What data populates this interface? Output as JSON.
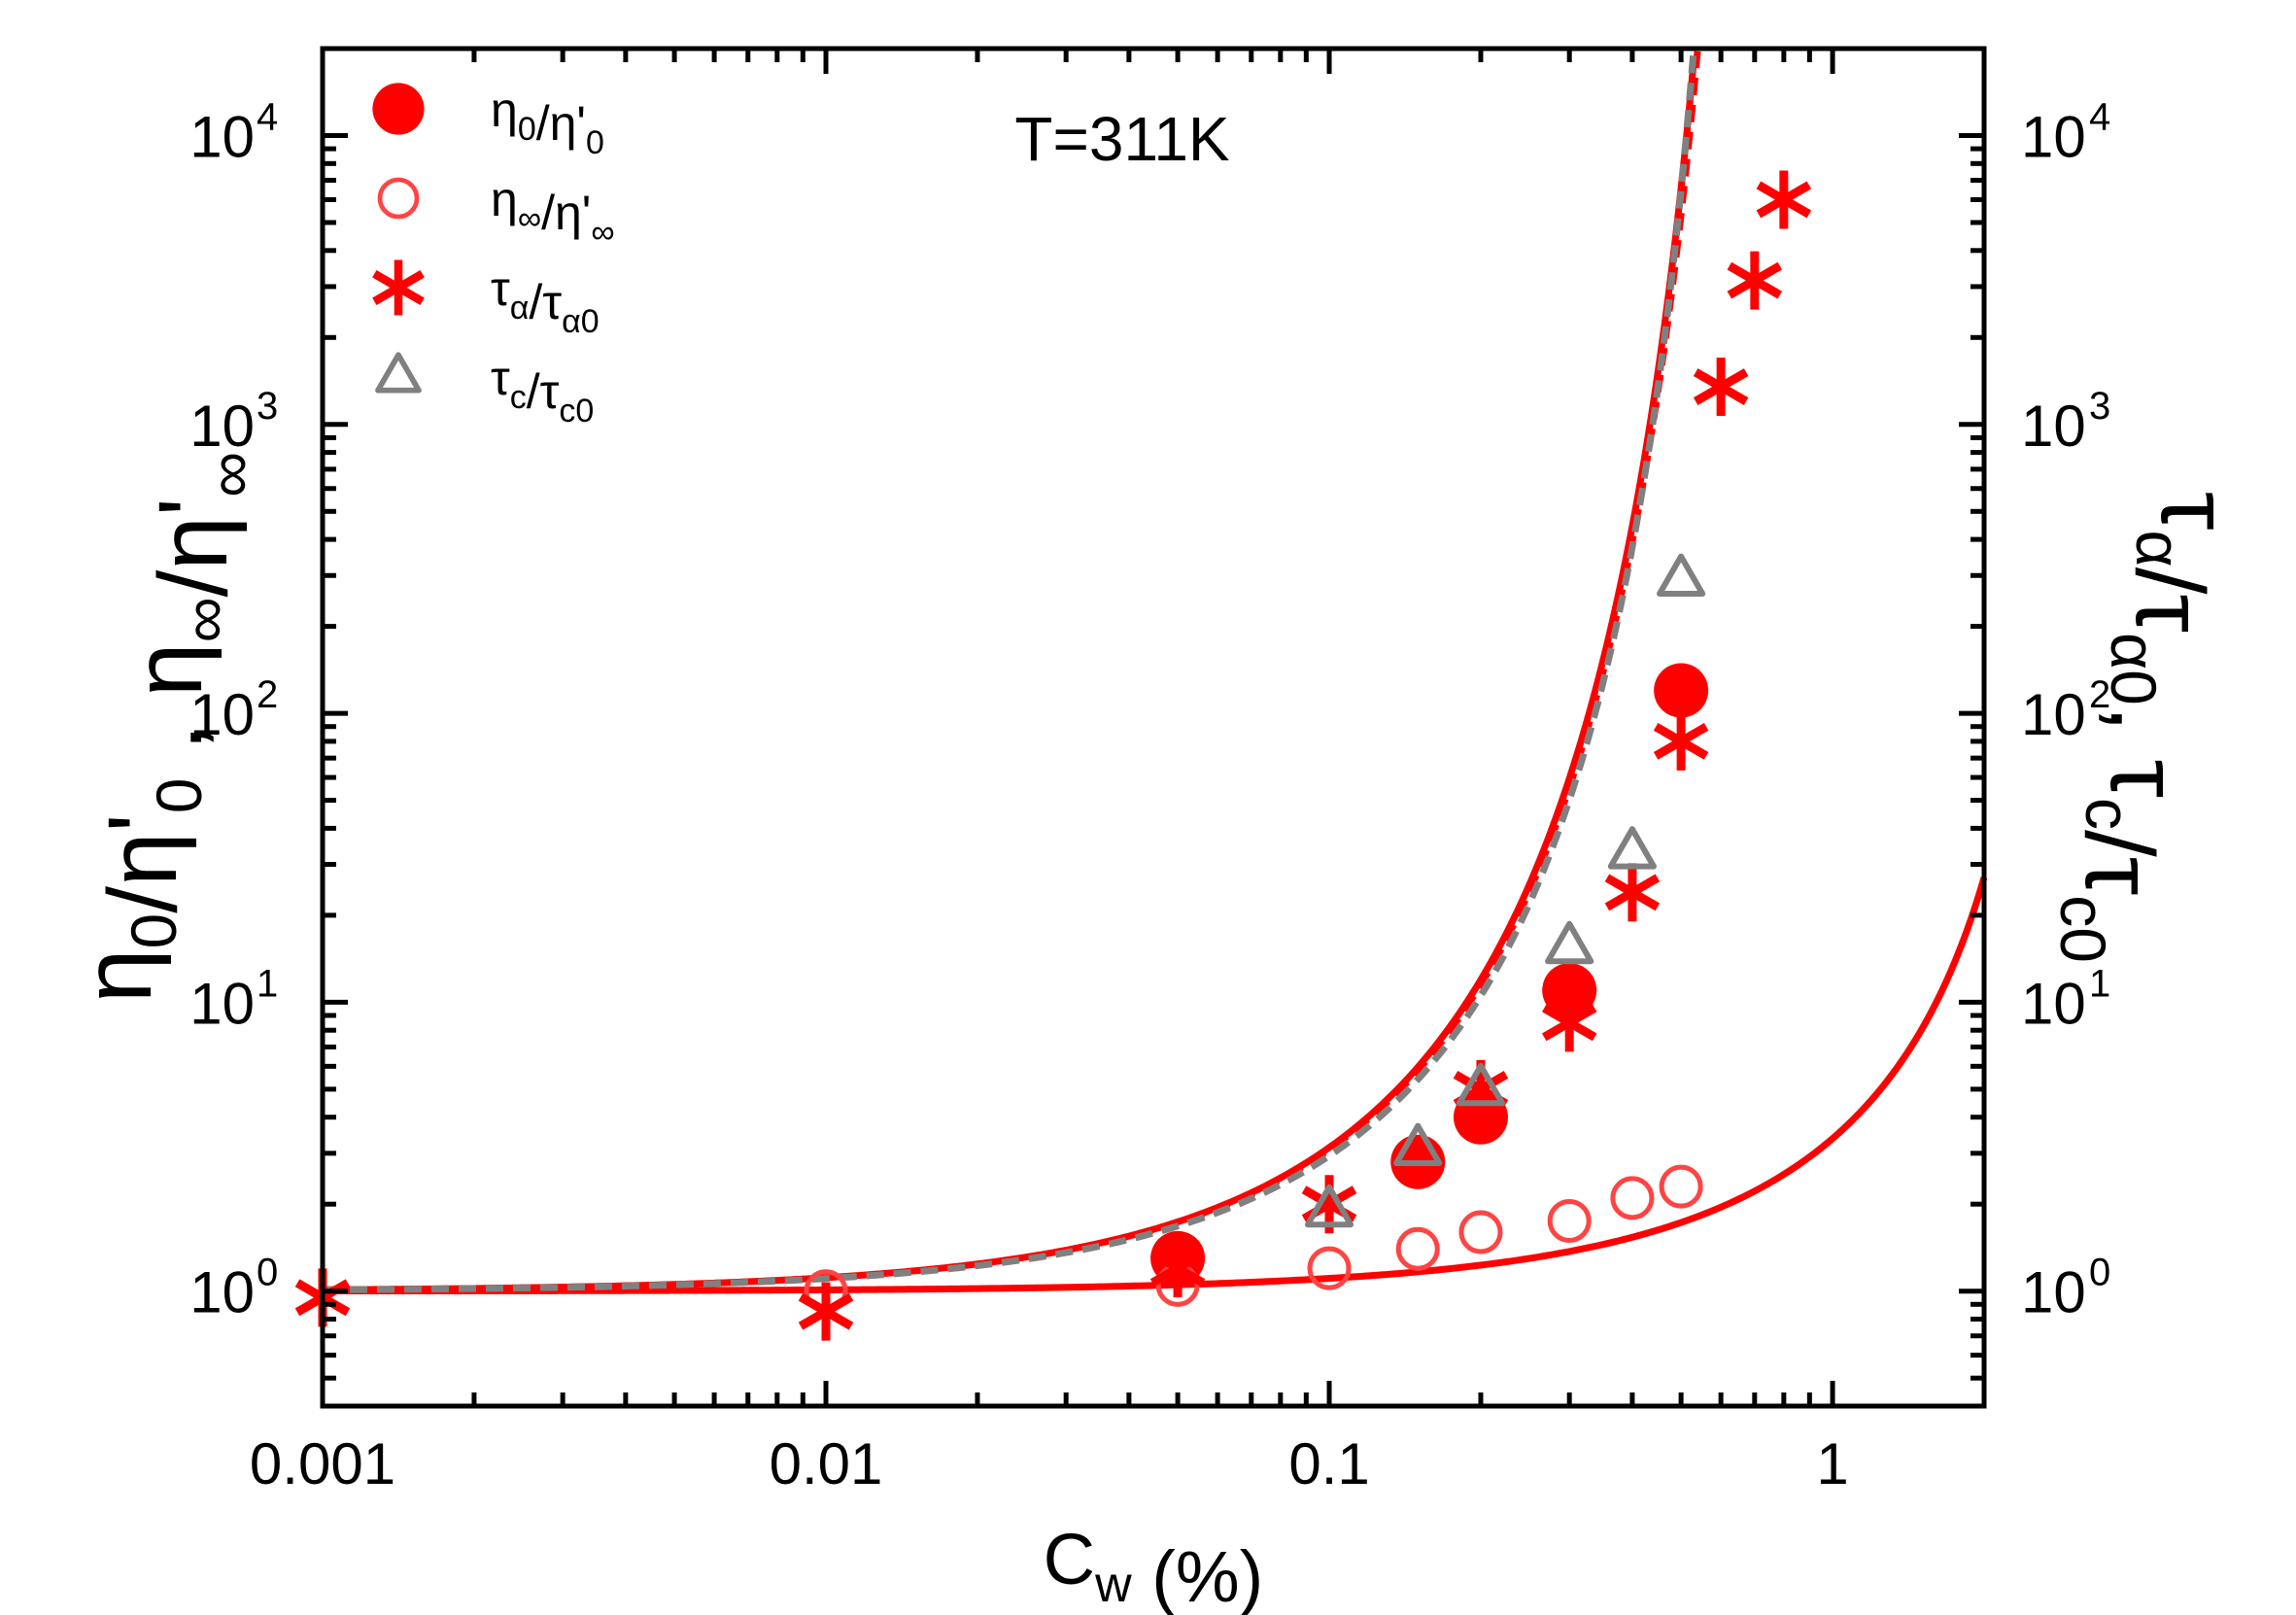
{
  "chart_data": {
    "type": "scatter",
    "title": "",
    "annotation": "T=311K",
    "x_scale": "log",
    "y_scale": "log",
    "xlim": [
      0.001,
      2
    ],
    "ylim": [
      0.4,
      20000
    ],
    "xlabel": {
      "main": "C",
      "sub": "w",
      "rest": " (%)"
    },
    "ylabel_left": {
      "parts": [
        {
          "t": "η",
          "s": "n"
        },
        {
          "t": "0",
          "s": "sub"
        },
        {
          "t": "/η'",
          "s": "n"
        },
        {
          "t": "0",
          "s": "sub"
        },
        {
          "t": " , ",
          "s": "n"
        },
        {
          "t": "η",
          "s": "n"
        },
        {
          "t": "∞",
          "s": "sub"
        },
        {
          "t": "/η'",
          "s": "n"
        },
        {
          "t": "∞",
          "s": "sub"
        }
      ]
    },
    "ylabel_right": {
      "parts": [
        {
          "t": "τ",
          "s": "n"
        },
        {
          "t": "α",
          "s": "sub"
        },
        {
          "t": "/τ",
          "s": "n"
        },
        {
          "t": "α0",
          "s": "sub"
        },
        {
          "t": ", ",
          "s": "n"
        },
        {
          "t": "τ",
          "s": "n"
        },
        {
          "t": "c",
          "s": "sub"
        },
        {
          "t": "/τ",
          "s": "n"
        },
        {
          "t": "c0",
          "s": "sub"
        }
      ]
    },
    "x_ticks": [
      {
        "value": 0.001,
        "label": "0.001"
      },
      {
        "value": 0.01,
        "label": "0.01"
      },
      {
        "value": 0.1,
        "label": "0.1"
      },
      {
        "value": 1,
        "label": "1"
      }
    ],
    "y_ticks": [
      {
        "value": 1,
        "base": "10",
        "exp": "0"
      },
      {
        "value": 10,
        "base": "10",
        "exp": "1"
      },
      {
        "value": 100,
        "base": "10",
        "exp": "2"
      },
      {
        "value": 1000,
        "base": "10",
        "exp": "3"
      },
      {
        "value": 10000,
        "base": "10",
        "exp": "4"
      }
    ],
    "series": [
      {
        "name": "η0/η'0",
        "legend_parts": [
          {
            "t": "η",
            "s": "n"
          },
          {
            "t": "0",
            "s": "sub"
          },
          {
            "t": "/η'",
            "s": "n"
          },
          {
            "t": "0",
            "s": "sub"
          }
        ],
        "marker": "filled-circle",
        "color": "#ff0000",
        "points": [
          [
            0.05,
            1.3
          ],
          [
            0.15,
            2.8
          ],
          [
            0.2,
            4.0
          ],
          [
            0.3,
            11
          ],
          [
            0.5,
            120
          ]
        ]
      },
      {
        "name": "η∞/η'∞",
        "legend_parts": [
          {
            "t": "η",
            "s": "n"
          },
          {
            "t": "∞",
            "s": "sub"
          },
          {
            "t": "/η'",
            "s": "n"
          },
          {
            "t": "∞",
            "s": "sub"
          }
        ],
        "marker": "open-circle",
        "color": "#ff4444",
        "points": [
          [
            0.01,
            1.0
          ],
          [
            0.05,
            1.05
          ],
          [
            0.1,
            1.2
          ],
          [
            0.15,
            1.4
          ],
          [
            0.2,
            1.6
          ],
          [
            0.3,
            1.75
          ],
          [
            0.4,
            2.1
          ],
          [
            0.5,
            2.3
          ]
        ]
      },
      {
        "name": "τα/τα0",
        "legend_parts": [
          {
            "t": "τ",
            "s": "n"
          },
          {
            "t": "α",
            "s": "sub"
          },
          {
            "t": "/τ",
            "s": "n"
          },
          {
            "t": "α0",
            "s": "sub"
          }
        ],
        "marker": "asterisk",
        "color": "#ff0000",
        "points": [
          [
            0.001,
            0.95
          ],
          [
            0.01,
            0.85
          ],
          [
            0.05,
            1.2
          ],
          [
            0.1,
            2.0
          ],
          [
            0.2,
            5.0
          ],
          [
            0.3,
            8.5
          ],
          [
            0.4,
            24
          ],
          [
            0.5,
            80
          ],
          [
            0.6,
            1350
          ],
          [
            0.7,
            3150
          ],
          [
            0.8,
            6000
          ]
        ]
      },
      {
        "name": "τc/τc0",
        "legend_parts": [
          {
            "t": "τ",
            "s": "n"
          },
          {
            "t": "c",
            "s": "sub"
          },
          {
            "t": "/τ",
            "s": "n"
          },
          {
            "t": "c0",
            "s": "sub"
          }
        ],
        "marker": "open-triangle",
        "color": "#808080",
        "points": [
          [
            0.1,
            1.9
          ],
          [
            0.15,
            3.1
          ],
          [
            0.2,
            5.0
          ],
          [
            0.3,
            15.5
          ],
          [
            0.4,
            33
          ],
          [
            0.5,
            290
          ]
        ]
      }
    ],
    "fits": [
      {
        "name": "fit η0/η'0",
        "style": "solid",
        "color": "#ff0000",
        "cmax": 0.75,
        "a": 3,
        "n": 8
      },
      {
        "name": "fit η∞/η'∞",
        "style": "solid",
        "color": "#ff0000",
        "cmax": 3.0,
        "a": 2.4,
        "n": 3
      },
      {
        "name": "fit τα/τα0",
        "style": "dashed",
        "color": "#ff0000",
        "cmax": 0.76,
        "a": 2,
        "n": 8
      },
      {
        "name": "fit τc/τc0",
        "style": "dashed",
        "color": "#808080",
        "cmax": 0.7,
        "a": 3,
        "n": 7
      }
    ],
    "legend_position": "top-left"
  }
}
